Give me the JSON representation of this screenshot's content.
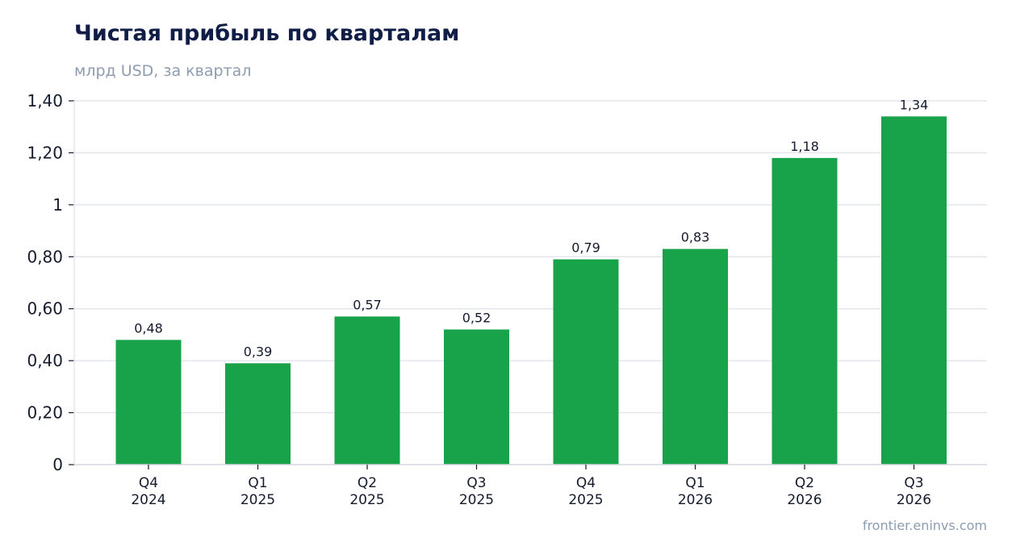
{
  "header": {
    "title": "Чистая прибыль по кварталам",
    "subtitle": "млрд USD, за квартал"
  },
  "footer": {
    "source": "frontier.eninvs.com"
  },
  "colors": {
    "bar": "#18a34a",
    "grid": "#e3e6ee",
    "axis": "#d4d8e0",
    "text": "#141b2d"
  },
  "chart_data": {
    "type": "bar",
    "title": "Чистая прибыль по кварталам",
    "subtitle": "млрд USD, за квартал",
    "categories": [
      [
        "Q4",
        "2024"
      ],
      [
        "Q1",
        "2025"
      ],
      [
        "Q2",
        "2025"
      ],
      [
        "Q3",
        "2025"
      ],
      [
        "Q4",
        "2025"
      ],
      [
        "Q1",
        "2026"
      ],
      [
        "Q2",
        "2026"
      ],
      [
        "Q3",
        "2026"
      ]
    ],
    "values": [
      0.48,
      0.39,
      0.57,
      0.52,
      0.79,
      0.83,
      1.18,
      1.34
    ],
    "value_labels": [
      "0,48",
      "0,39",
      "0,57",
      "0,52",
      "0,79",
      "0,83",
      "1,18",
      "1,34"
    ],
    "ylim": [
      0,
      1.4
    ],
    "yticks": [
      0,
      0.2,
      0.4,
      0.6,
      0.8,
      1.0,
      1.2,
      1.4
    ],
    "ytick_labels": [
      "0",
      "0,20",
      "0,40",
      "0,60",
      "0,80",
      "1",
      "1,20",
      "1,40"
    ],
    "grid": true,
    "legend": "none"
  }
}
